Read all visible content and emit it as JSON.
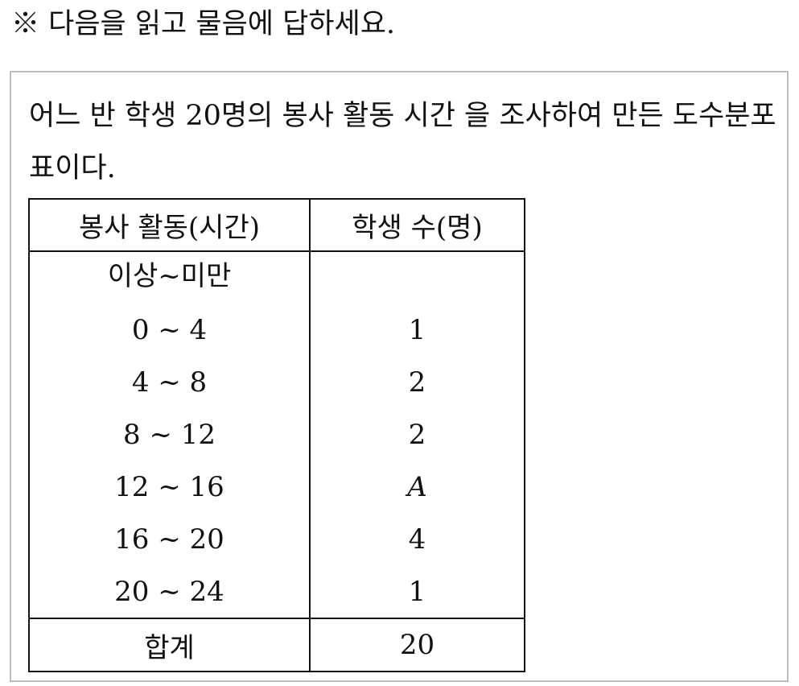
{
  "instruction": "※ 다음을 읽고 물음에 답하세요.",
  "problem": {
    "text": "어느 반 학생 20명의 봉사 활동 시간 을 조사하여 만든 도수분포표이다."
  },
  "table": {
    "headers": [
      "봉사 활동(시간)",
      "학생 수(명)"
    ],
    "subheader": "이상~미만",
    "rows": [
      {
        "range": "0 ~ 4",
        "count": "1"
      },
      {
        "range": "4 ~ 8",
        "count": "2"
      },
      {
        "range": "8 ~ 12",
        "count": "2"
      },
      {
        "range": "12 ~ 16",
        "count": "A"
      },
      {
        "range": "16 ~ 20",
        "count": "4"
      },
      {
        "range": "20 ~ 24",
        "count": "1"
      }
    ],
    "total_label": "합계",
    "total_value": "20"
  }
}
